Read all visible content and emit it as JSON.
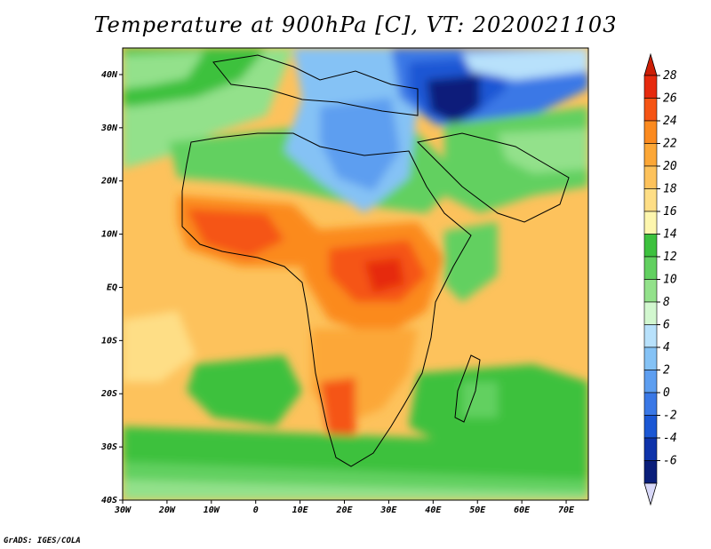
{
  "title": "Temperature at 900hPa [C], VT: 2020021103",
  "credit": "GrADS: IGES/COLA",
  "map": {
    "lon_range": [
      -30,
      75
    ],
    "lat_range": [
      -40,
      45
    ],
    "lon_ticks": [
      {
        "value": -30,
        "label": "30W"
      },
      {
        "value": -20,
        "label": "20W"
      },
      {
        "value": -10,
        "label": "10W"
      },
      {
        "value": 0,
        "label": "0"
      },
      {
        "value": 10,
        "label": "10E"
      },
      {
        "value": 20,
        "label": "20E"
      },
      {
        "value": 30,
        "label": "30E"
      },
      {
        "value": 40,
        "label": "40E"
      },
      {
        "value": 50,
        "label": "50E"
      },
      {
        "value": 60,
        "label": "60E"
      },
      {
        "value": 70,
        "label": "70E"
      }
    ],
    "lat_ticks": [
      {
        "value": 40,
        "label": "40N"
      },
      {
        "value": 30,
        "label": "30N"
      },
      {
        "value": 20,
        "label": "20N"
      },
      {
        "value": 10,
        "label": "10N"
      },
      {
        "value": 0,
        "label": "EQ"
      },
      {
        "value": -10,
        "label": "10S"
      },
      {
        "value": -20,
        "label": "20S"
      },
      {
        "value": -30,
        "label": "30S"
      },
      {
        "value": -40,
        "label": "40S"
      }
    ]
  },
  "colorbar": {
    "ticks": [
      "28",
      "26",
      "24",
      "22",
      "20",
      "18",
      "16",
      "14",
      "12",
      "10",
      "8",
      "6",
      "4",
      "2",
      "0",
      "-2",
      "-4",
      "-6"
    ],
    "colors": [
      "#e62a0e",
      "#f55414",
      "#fb8a1f",
      "#fca737",
      "#fdc25c",
      "#fede86",
      "#fdf6ae",
      "#3dc13e",
      "#62d060",
      "#93e18b",
      "#d2f7cf",
      "#b8e1fb",
      "#85c2f5",
      "#5d9ef0",
      "#3a78e6",
      "#1b57d4",
      "#0e33aa",
      "#0a1e7a"
    ],
    "top_color": "#cc1e06",
    "bottom_color": "#d8d8f8"
  }
}
